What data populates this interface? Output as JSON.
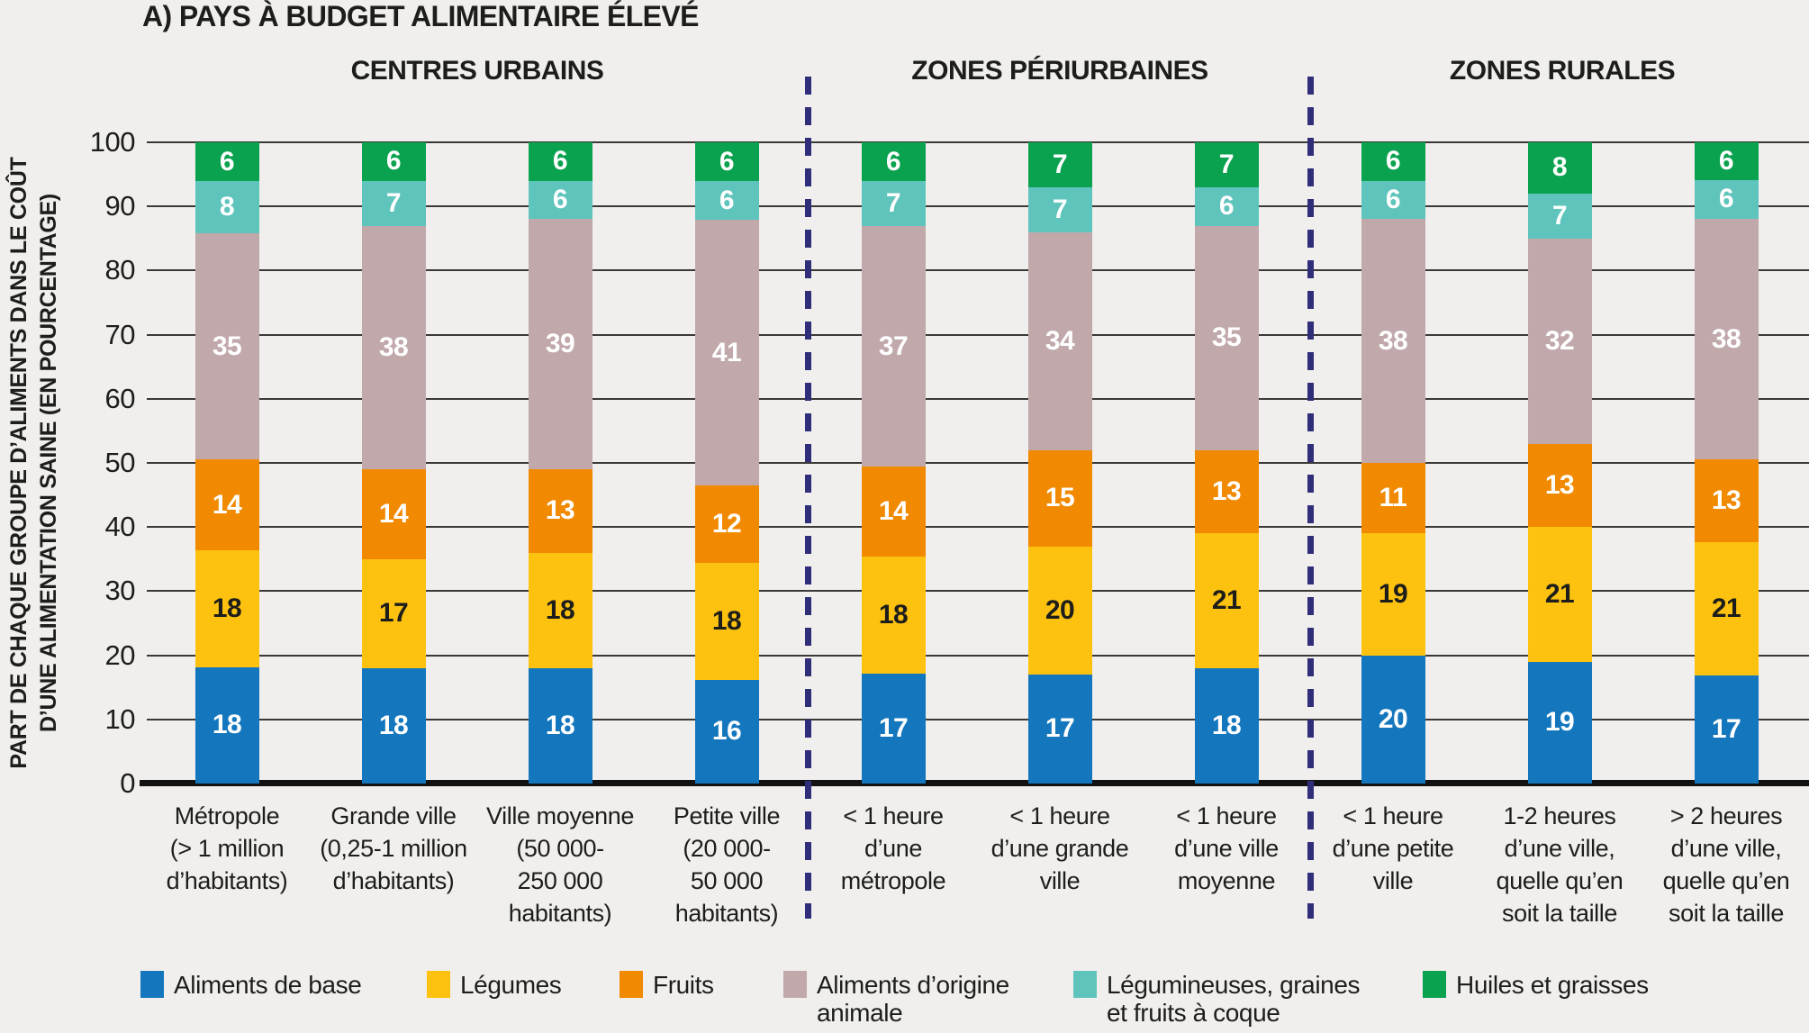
{
  "title": "A) PAYS À BUDGET ALIMENTAIRE ÉLEVÉ",
  "sections": [
    {
      "label": "CENTRES URBAINS"
    },
    {
      "label": "ZONES PÉRIURBAINES"
    },
    {
      "label": "ZONES RURALES"
    }
  ],
  "y_axis": {
    "title_line1": "PART DE CHAQUE GROUPE D’ALIMENTS DANS LE COÛT",
    "title_line2": "D’UNE ALIMENTATION SAINE (EN POURCENTAGE)"
  },
  "chart_data": {
    "type": "bar",
    "stacked": true,
    "title": "A) PAYS À BUDGET ALIMENTAIRE ÉLEVÉ",
    "ylabel": "PART DE CHAQUE GROUPE D’ALIMENTS DANS LE COÛT D’UNE ALIMENTATION SAINE (EN POURCENTAGE)",
    "ylim": [
      0,
      100
    ],
    "yticks": [
      0,
      10,
      20,
      30,
      40,
      50,
      60,
      70,
      80,
      90,
      100
    ],
    "grid": true,
    "legend_position": "bottom",
    "section_of_bar": [
      0,
      0,
      0,
      0,
      1,
      1,
      1,
      2,
      2,
      2
    ],
    "categories": [
      "Métropole\n(> 1 million\nd’habitants)",
      "Grande ville\n(0,25-1 million\nd’habitants)",
      "Ville moyenne\n(50 000-\n250 000\nhabitants)",
      "Petite ville\n(20 000-\n50 000\nhabitants)",
      "< 1 heure\nd’une\nmétropole",
      "< 1 heure\nd’une grande\nville",
      "< 1 heure\nd’une ville\nmoyenne",
      "< 1 heure\nd’une petite\nville",
      "1-2 heures\nd’une ville,\nquelle qu’en\nsoit la taille",
      "> 2 heures\nd’une ville,\nquelle qu’en\nsoit la taille"
    ],
    "series": [
      {
        "name": "Aliments de base",
        "legend_label": "Aliments de base",
        "color": "#1477bd",
        "label_color": "#ffffff"
      },
      {
        "name": "Légumes",
        "legend_label": "Légumes",
        "color": "#fdc20f",
        "label_color": "#1d1d1b"
      },
      {
        "name": "Fruits",
        "legend_label": "Fruits",
        "color": "#f18a00",
        "label_color": "#ffffff"
      },
      {
        "name": "Aliments d’origine animale",
        "legend_label": "Aliments d’origine\nanimale",
        "color": "#c1a9ab",
        "label_color": "#ffffff"
      },
      {
        "name": "Légumineuses, graines et fruits à coque",
        "legend_label": "Légumineuses, graines\net fruits à coque",
        "color": "#5fc4bc",
        "label_color": "#ffffff"
      },
      {
        "name": "Huiles et graisses",
        "legend_label": "Huiles et graisses",
        "color": "#0ba24f",
        "label_color": "#ffffff"
      }
    ],
    "values": [
      [
        18,
        18,
        14,
        35,
        8,
        6
      ],
      [
        18,
        17,
        14,
        38,
        7,
        6
      ],
      [
        18,
        18,
        13,
        39,
        6,
        6
      ],
      [
        16,
        18,
        12,
        41,
        6,
        6
      ],
      [
        17,
        18,
        14,
        37,
        7,
        6
      ],
      [
        17,
        20,
        15,
        34,
        7,
        7
      ],
      [
        18,
        21,
        13,
        35,
        6,
        7
      ],
      [
        20,
        19,
        11,
        38,
        6,
        6
      ],
      [
        19,
        21,
        13,
        32,
        7,
        8
      ],
      [
        17,
        21,
        13,
        38,
        6,
        6
      ]
    ]
  }
}
